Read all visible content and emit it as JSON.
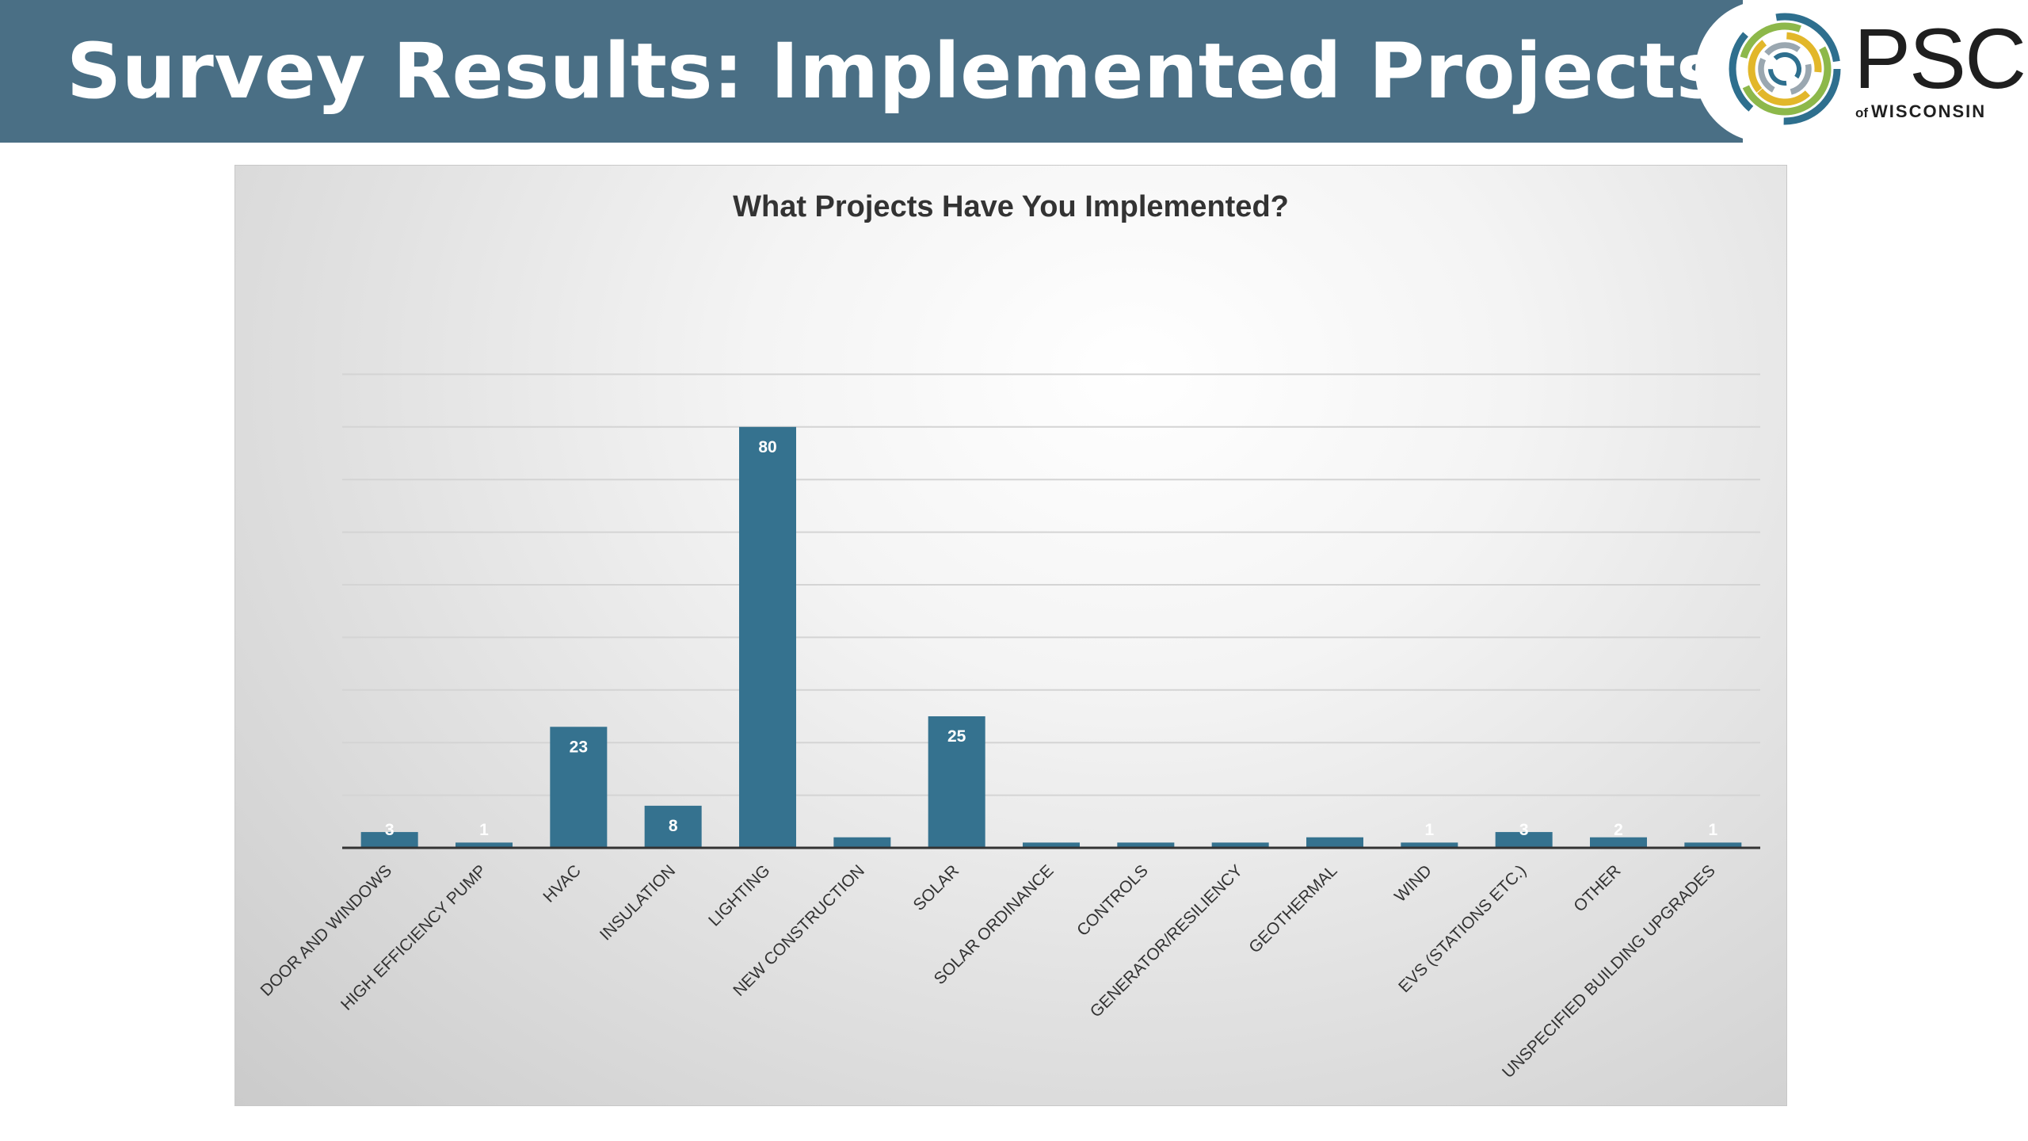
{
  "slide": {
    "title": "Survey Results: Implemented Projects"
  },
  "logo": {
    "name": "PSC",
    "sub_prefix": "of",
    "sub": "WISCONSIN"
  },
  "colors": {
    "header": "#4a6f85",
    "bar": "#35728f",
    "axis": "#333333",
    "grid": "#d4d4d4"
  },
  "chart_data": {
    "type": "bar",
    "title": "What Projects Have You Implemented?",
    "xlabel": "",
    "ylabel": "",
    "ylim": [
      0,
      90
    ],
    "grid": true,
    "legend": "none",
    "categories": [
      "DOOR AND WINDOWS",
      "HIGH EFFICIENCY PUMP",
      "HVAC",
      "INSULATION",
      "LIGHTING",
      "NEW CONSTRUCTION",
      "SOLAR",
      "SOLAR ORDINANCE",
      "CONTROLS",
      "GENERATOR/RESILIENCY",
      "GEOTHERMAL",
      "WIND",
      "EVS (STATIONS ETC.)",
      "OTHER",
      "UNSPECIFIED BUILDING UPGRADES"
    ],
    "values": [
      3,
      1,
      23,
      8,
      80,
      2,
      25,
      1,
      1,
      1,
      2,
      1,
      3,
      2,
      1
    ],
    "data_labels": [
      "3",
      "1",
      "23",
      "8",
      "80",
      "",
      "25",
      "",
      "",
      "",
      "",
      "1",
      "3",
      "2",
      "1"
    ]
  }
}
